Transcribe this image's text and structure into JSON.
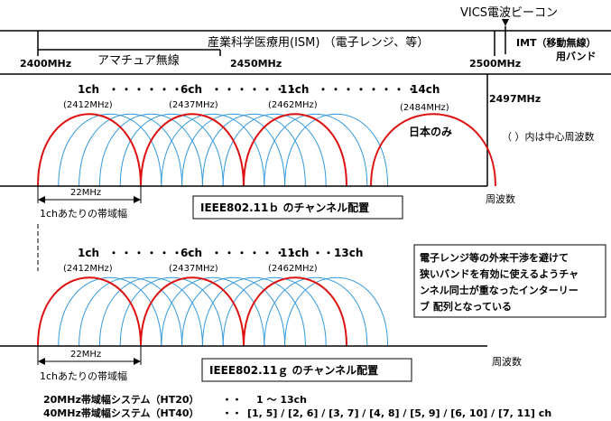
{
  "top": {
    "vics_label": "VICS電波ビーコン",
    "ism_label": "産業科学医療用(ISM) （電子レンジ、等）",
    "imt_label_1": "IMT（移動無線）",
    "imt_label_2": "用バンド",
    "amateur_label": "アマチュア無線",
    "freq_2400": "2400MHz",
    "freq_2450": "2450MHz",
    "freq_2500": "2500MHz"
  },
  "b_section": {
    "ch1": "1ch",
    "ch6": "6ch",
    "ch11": "11ch",
    "ch14": "14ch",
    "f1": "(2412MHz)",
    "f6": "(2437MHz)",
    "f11": "(2462MHz)",
    "f14": "(2484MHz)",
    "freq_2497": "2497MHz",
    "japan_only": "日本のみ",
    "center_note": "（ ）内は中心周波数",
    "bw_label": "22MHz",
    "bw_caption": "1chあたりの帯域幅",
    "title": "IEEE802.11ｂ のチャンネル配置",
    "axis_label": "周波数"
  },
  "g_section": {
    "ch1": "1ch",
    "ch6": "6ch",
    "ch11": "11ch",
    "ch13": "13ch",
    "f1": "(2412MHz)",
    "f6": "(2437MHz)",
    "f11": "(2462MHz)",
    "bw_label": "22MHz",
    "bw_caption": "1chあたりの帯域幅",
    "title": "IEEE802.11ｇ のチャンネル配置",
    "axis_label": "周波数"
  },
  "note_box": {
    "line1": "電子レンジ等の外来干渉を避けて",
    "line2": "狭いバンドを有効に使えるようチャ",
    "line3": "ンネル同士が重なったインターリー",
    "line4": "ブ 配列となっている"
  },
  "bottom": {
    "ht20_name": "20MHz帯域幅システム（HT20）",
    "ht20_sep": "・・",
    "ht20_value": "1 ～ 13ch",
    "ht40_name": "40MHz帯域幅システム（HT40）",
    "ht40_sep": "・・",
    "ht40_value": "[1, 5] / [2, 6] / [3, 7] / [4, 8] / [5, 9] / [6, 10] / [7, 11] ch"
  },
  "colors": {
    "highlight_arch": "#dd1111",
    "overlap_arch": "#3399dd",
    "line": "#000000"
  }
}
